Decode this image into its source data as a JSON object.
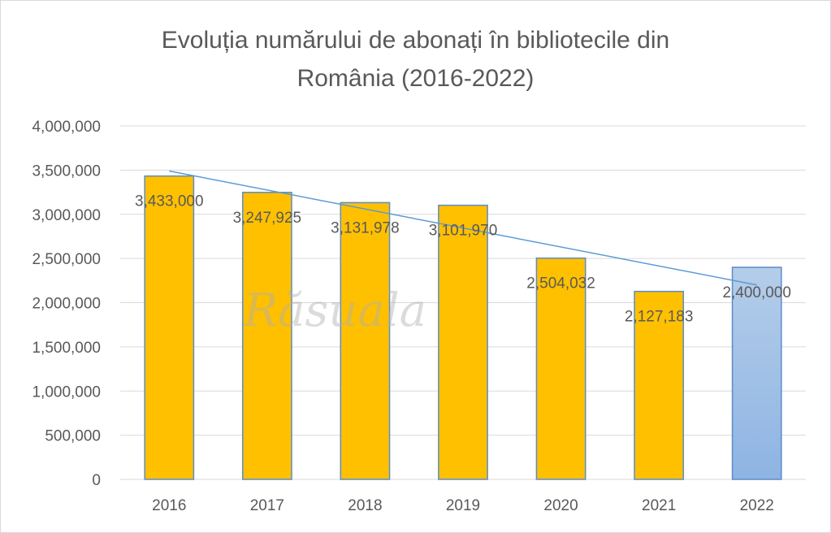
{
  "chart_data": {
    "type": "bar",
    "title_lines": [
      "Evoluția numărului de abonați în bibliotecile din",
      "România (2016-2022)"
    ],
    "categories": [
      "2016",
      "2017",
      "2018",
      "2019",
      "2020",
      "2021",
      "2022"
    ],
    "values": [
      3433000,
      3247925,
      3131978,
      3101970,
      2504032,
      2127183,
      2400000
    ],
    "value_labels": [
      "3,433,000",
      "3,247,925",
      "3,131,978",
      "3,101,970",
      "2,504,032",
      "2,127,183",
      "2,400,000"
    ],
    "y_ticks": [
      0,
      500000,
      1000000,
      1500000,
      2000000,
      2500000,
      3000000,
      3500000,
      4000000
    ],
    "y_tick_labels": [
      "0",
      "500,000",
      "1,000,000",
      "1,500,000",
      "2,000,000",
      "2,500,000",
      "3,000,000",
      "3,500,000",
      "4,000,000"
    ],
    "ylim": [
      0,
      4000000
    ],
    "xlabel": "",
    "ylabel": "",
    "grid": true,
    "legend": "none",
    "trendline": {
      "type": "linear",
      "start": 3490000,
      "end": 2200000
    },
    "colors": {
      "bar": "#ffc000",
      "bar_border": "#5b8cc8",
      "projected_bar_top": "#b4cde9",
      "projected_bar_bottom": "#8eb4e3",
      "trendline": "#5b9bd5",
      "grid": "#d9d9d9",
      "text": "#595959"
    }
  },
  "watermark": {
    "text": "Răsuala"
  }
}
